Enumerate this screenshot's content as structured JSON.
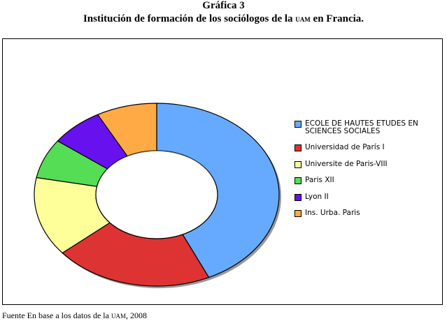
{
  "figure": {
    "label": "Gráfica 3",
    "title_pre": "Institución de formación de los sociólogos de la ",
    "title_abbr": "UAM",
    "title_post": " en Francia."
  },
  "source": {
    "pre": "Fuente En base a los datos de la ",
    "abbr": "UAM",
    "post": ", 2008"
  },
  "chart_data": {
    "type": "pie",
    "donut": true,
    "labels": [
      "ECOLE DE HAUTES ETUDES EN SCIENCES SOCIALES",
      "Universidad de París I",
      "Universite de Paris-VIII",
      "Paris XII",
      "Lyon II",
      "Ins. Urba. Paris"
    ],
    "values": [
      43,
      21,
      14,
      7,
      7,
      8
    ],
    "colors": [
      "#66aaff",
      "#dd3333",
      "#ffff99",
      "#55dd55",
      "#6611ee",
      "#ffaa44"
    ],
    "legend_position": "right"
  }
}
